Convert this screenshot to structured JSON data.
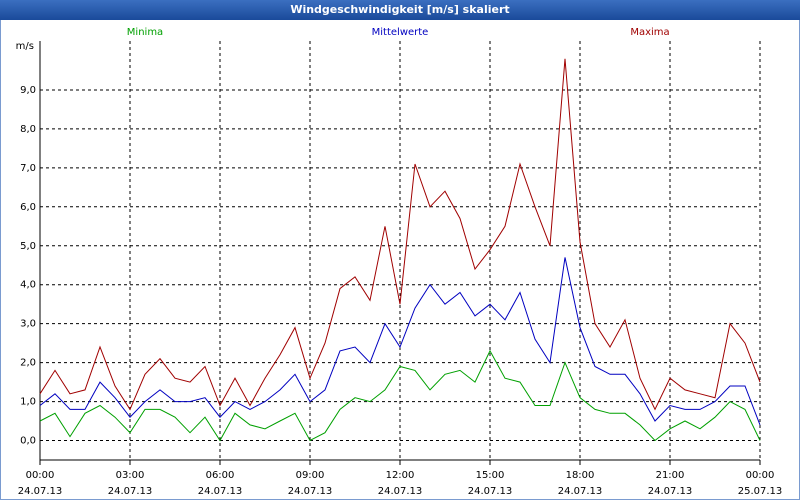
{
  "chart_data": {
    "type": "line",
    "title": "Windgeschwindigkeit [m/s] skaliert",
    "y_label": "m/s",
    "x": [
      0,
      0.5,
      1,
      1.5,
      2,
      2.5,
      3,
      3.5,
      4,
      4.5,
      5,
      5.5,
      6,
      6.5,
      7,
      7.5,
      8,
      8.5,
      9,
      9.5,
      10,
      10.5,
      11,
      11.5,
      12,
      12.5,
      13,
      13.5,
      14,
      14.5,
      15,
      15.5,
      16,
      16.5,
      17,
      17.5,
      18,
      18.5,
      19,
      19.5,
      20,
      20.5,
      21,
      21.5,
      22,
      22.5,
      23,
      23.5,
      24
    ],
    "series": [
      {
        "name": "Minima",
        "color": "#00a000",
        "values": [
          0.5,
          0.7,
          0.1,
          0.7,
          0.9,
          0.6,
          0.2,
          0.8,
          0.8,
          0.6,
          0.2,
          0.6,
          0.0,
          0.7,
          0.4,
          0.3,
          0.5,
          0.7,
          0.0,
          0.2,
          0.8,
          1.1,
          1.0,
          1.3,
          1.9,
          1.8,
          1.3,
          1.7,
          1.8,
          1.5,
          2.3,
          1.6,
          1.5,
          0.9,
          0.9,
          2.0,
          1.1,
          0.8,
          0.7,
          0.7,
          0.4,
          0.0,
          0.3,
          0.5,
          0.3,
          0.6,
          1.0,
          0.8,
          0.0
        ]
      },
      {
        "name": "Mittelwerte",
        "color": "#0000c0",
        "values": [
          0.9,
          1.2,
          0.8,
          0.8,
          1.5,
          1.1,
          0.6,
          1.0,
          1.3,
          1.0,
          1.0,
          1.1,
          0.6,
          1.0,
          0.8,
          1.0,
          1.3,
          1.7,
          1.0,
          1.3,
          2.3,
          2.4,
          2.0,
          3.0,
          2.4,
          3.4,
          4.0,
          3.5,
          3.8,
          3.2,
          3.5,
          3.1,
          3.8,
          2.6,
          2.0,
          4.7,
          2.9,
          1.9,
          1.7,
          1.7,
          1.2,
          0.5,
          0.9,
          0.8,
          0.8,
          1.0,
          1.4,
          1.4,
          0.4
        ]
      },
      {
        "name": "Maxima",
        "color": "#a00000",
        "values": [
          1.2,
          1.8,
          1.2,
          1.3,
          2.4,
          1.4,
          0.8,
          1.7,
          2.1,
          1.6,
          1.5,
          1.9,
          0.9,
          1.6,
          0.9,
          1.6,
          2.2,
          2.9,
          1.6,
          2.5,
          3.9,
          4.2,
          3.6,
          5.5,
          3.5,
          7.1,
          6.0,
          6.4,
          5.7,
          4.4,
          4.9,
          5.5,
          7.1,
          6.0,
          5.0,
          9.8,
          5.1,
          3.0,
          2.4,
          3.1,
          1.6,
          0.8,
          1.6,
          1.3,
          1.2,
          1.1,
          3.0,
          2.5,
          1.5
        ]
      }
    ],
    "xlim": [
      0,
      24
    ],
    "xticks": [
      {
        "value": 0,
        "label": "00:00",
        "date": "24.07.13"
      },
      {
        "value": 3,
        "label": "03:00",
        "date": "24.07.13"
      },
      {
        "value": 6,
        "label": "06:00",
        "date": "24.07.13"
      },
      {
        "value": 9,
        "label": "09:00",
        "date": "24.07.13"
      },
      {
        "value": 12,
        "label": "12:00",
        "date": "24.07.13"
      },
      {
        "value": 15,
        "label": "15:00",
        "date": "24.07.13"
      },
      {
        "value": 18,
        "label": "18:00",
        "date": "24.07.13"
      },
      {
        "value": 21,
        "label": "21:00",
        "date": "24.07.13"
      },
      {
        "value": 24,
        "label": "00:00",
        "date": "25.07.13"
      }
    ],
    "ylim": [
      -0.5,
      10
    ],
    "yticks": [
      {
        "value": 0,
        "label": "0,0"
      },
      {
        "value": 1,
        "label": "1,0"
      },
      {
        "value": 2,
        "label": "2,0"
      },
      {
        "value": 3,
        "label": "3,0"
      },
      {
        "value": 4,
        "label": "4,0"
      },
      {
        "value": 5,
        "label": "5,0"
      },
      {
        "value": 6,
        "label": "6,0"
      },
      {
        "value": 7,
        "label": "7,0"
      },
      {
        "value": 8,
        "label": "8,0"
      },
      {
        "value": 9,
        "label": "9,0"
      }
    ],
    "grid": true
  }
}
